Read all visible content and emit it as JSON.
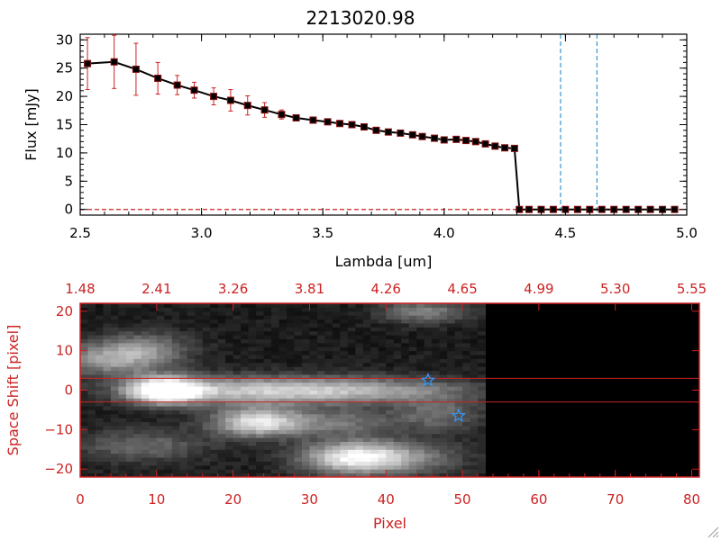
{
  "chart_data": [
    {
      "type": "line",
      "title": "2213020.98",
      "xlabel": "Lambda [um]",
      "ylabel": "Flux [mJy]",
      "xlim": [
        2.5,
        5.0
      ],
      "ylim": [
        -1,
        31
      ],
      "xticks": [
        2.5,
        3.0,
        3.5,
        4.0,
        4.5,
        5.0
      ],
      "xtick_labels": [
        "2.5",
        "3.0",
        "3.5",
        "4.0",
        "4.5",
        "5.0"
      ],
      "yticks": [
        0,
        5,
        10,
        15,
        20,
        25,
        30
      ],
      "ytick_labels": [
        "0",
        "5",
        "10",
        "15",
        "20",
        "25",
        "30"
      ],
      "grid": false,
      "series": [
        {
          "x": [
            2.53,
            2.64,
            2.73,
            2.82,
            2.9,
            2.97,
            3.05,
            3.12,
            3.19,
            3.26,
            3.33,
            3.39,
            3.46,
            3.52,
            3.57,
            3.62,
            3.67,
            3.72,
            3.77,
            3.82,
            3.87,
            3.91,
            3.96,
            4.0,
            4.05,
            4.09,
            4.13,
            4.17,
            4.21,
            4.25,
            4.29,
            4.31,
            4.35,
            4.4,
            4.45,
            4.5,
            4.55,
            4.6,
            4.65,
            4.7,
            4.75,
            4.8,
            4.85,
            4.9,
            4.95
          ],
          "values": [
            25.8,
            26.1,
            24.8,
            23.2,
            22.0,
            21.1,
            20.0,
            19.3,
            18.4,
            17.6,
            16.8,
            16.2,
            15.8,
            15.5,
            15.2,
            15.0,
            14.6,
            14.0,
            13.7,
            13.5,
            13.2,
            12.9,
            12.6,
            12.3,
            12.4,
            12.2,
            12.0,
            11.6,
            11.2,
            10.9,
            10.8,
            0.0,
            0.0,
            0.0,
            0.0,
            0.0,
            0.0,
            0.0,
            0.0,
            0.0,
            0.0,
            0.0,
            0.0,
            0.0,
            0.0
          ],
          "errors": [
            4.6,
            4.7,
            4.6,
            2.8,
            1.7,
            1.4,
            1.5,
            1.9,
            1.7,
            1.3,
            0.8,
            0.4,
            0.3,
            0.3,
            0.3,
            0.3,
            0.3,
            0.3,
            0.3,
            0.3,
            0.3,
            0.3,
            0.3,
            0.3,
            0.3,
            0.3,
            0.3,
            0.3,
            0.3,
            0.3,
            0.3,
            0.3,
            0.3,
            0.3,
            0.3,
            0.3,
            0.3,
            0.3,
            0.3,
            0.3,
            0.3,
            0.3,
            0.3,
            0.3,
            0.3
          ],
          "line_color": "#000000",
          "marker_color": "#000000",
          "marker_edge_color": "#8b1010",
          "errorbar_color": "#cc2222"
        }
      ],
      "reference_lines": {
        "vertical_dashed_x": [
          4.48,
          4.63
        ],
        "vertical_color": "#3399cc",
        "horizontal_dashed_y": 0,
        "horizontal_color": "#cc2222"
      }
    },
    {
      "type": "heatmap",
      "xlabel": "Pixel",
      "ylabel": "Space Shift [pixel]",
      "xlim": [
        0,
        81
      ],
      "ylim": [
        -22,
        22
      ],
      "xticks": [
        0,
        10,
        20,
        30,
        40,
        50,
        60,
        70,
        80
      ],
      "xtick_labels": [
        "0",
        "10",
        "20",
        "30",
        "40",
        "50",
        "60",
        "70",
        "80"
      ],
      "yticks": [
        -20,
        -10,
        0,
        10,
        20
      ],
      "ytick_labels": [
        "−20",
        "−10",
        "0",
        "10",
        "20"
      ],
      "top_axis_tick_labels": [
        "1.48",
        "2.41",
        "3.26",
        "3.81",
        "4.26",
        "4.65",
        "4.99",
        "5.30",
        "5.55"
      ],
      "data_extent_x": 53,
      "blobs": [
        {
          "x": 11,
          "y": 0,
          "sx": 3.5,
          "sy": 2.4,
          "amp": 1.0
        },
        {
          "x": 22,
          "y": 0,
          "sx": 10,
          "sy": 2.5,
          "amp": 0.55
        },
        {
          "x": 38,
          "y": 0,
          "sx": 10,
          "sy": 2.3,
          "amp": 0.45
        },
        {
          "x": 4,
          "y": 8,
          "sx": 5,
          "sy": 3,
          "amp": 0.5
        },
        {
          "x": 9,
          "y": 11,
          "sx": 4,
          "sy": 3,
          "amp": 0.3
        },
        {
          "x": 23,
          "y": -8,
          "sx": 4,
          "sy": 2.6,
          "amp": 0.75
        },
        {
          "x": 33,
          "y": -8,
          "sx": 6,
          "sy": 2.4,
          "amp": 0.35
        },
        {
          "x": 47,
          "y": -6,
          "sx": 4,
          "sy": 3,
          "amp": 0.3
        },
        {
          "x": 36,
          "y": -17,
          "sx": 5,
          "sy": 3,
          "amp": 0.85
        },
        {
          "x": 8,
          "y": -14,
          "sx": 6,
          "sy": 3,
          "amp": 0.3
        },
        {
          "x": 45,
          "y": 20,
          "sx": 4,
          "sy": 2,
          "amp": 0.4
        },
        {
          "x": 44,
          "y": -17,
          "sx": 5,
          "sy": 3,
          "amp": 0.25
        }
      ],
      "extraction_lines_y": [
        3,
        -3
      ],
      "extraction_line_color": "#cc2222",
      "stars": [
        {
          "x": 45.5,
          "y": 2.5
        },
        {
          "x": 49.5,
          "y": -6.5
        }
      ],
      "star_color": "#3399ff",
      "axis_color": "#cc2222"
    }
  ]
}
